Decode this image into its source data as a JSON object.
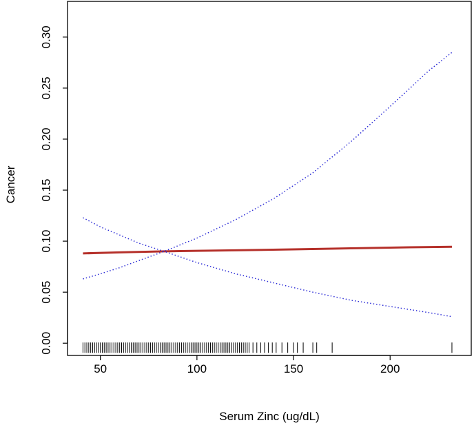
{
  "chart_data": {
    "type": "line",
    "title": "",
    "xlabel": "Serum Zinc (ug/dL)",
    "ylabel": "Cancer",
    "xlim": [
      33,
      242
    ],
    "ylim": [
      -0.012,
      0.335
    ],
    "x_ticks": [
      50,
      100,
      150,
      200
    ],
    "y_ticks": [
      0.0,
      0.05,
      0.1,
      0.15,
      0.2,
      0.25,
      0.3
    ],
    "x_tick_labels": [
      "50",
      "100",
      "150",
      "200"
    ],
    "y_tick_labels": [
      "0.00",
      "0.05",
      "0.10",
      "0.15",
      "0.20",
      "0.25",
      "0.30"
    ],
    "grid": false,
    "legend": "none",
    "series": [
      {
        "role": "fit",
        "style": "solid",
        "color": "#b5302a",
        "x": [
          41,
          60,
          83,
          100,
          120,
          150,
          180,
          210,
          232
        ],
        "y": [
          0.088,
          0.089,
          0.09,
          0.0905,
          0.091,
          0.092,
          0.093,
          0.094,
          0.0945
        ]
      },
      {
        "role": "upper-ci",
        "style": "dotted",
        "color": "#2b2bd6",
        "x": [
          41,
          50,
          60,
          70,
          83,
          100,
          120,
          140,
          160,
          180,
          200,
          220,
          232
        ],
        "y": [
          0.063,
          0.068,
          0.074,
          0.081,
          0.09,
          0.103,
          0.121,
          0.142,
          0.167,
          0.198,
          0.232,
          0.267,
          0.285
        ]
      },
      {
        "role": "lower-ci",
        "style": "dotted",
        "color": "#2b2bd6",
        "x": [
          41,
          50,
          60,
          70,
          83,
          100,
          120,
          140,
          160,
          180,
          200,
          220,
          232
        ],
        "y": [
          0.123,
          0.114,
          0.106,
          0.098,
          0.09,
          0.079,
          0.068,
          0.059,
          0.05,
          0.042,
          0.036,
          0.03,
          0.026
        ]
      }
    ],
    "rug": {
      "y": 0.0,
      "x": [
        41,
        42,
        43,
        44,
        45,
        46,
        47,
        48,
        49,
        50,
        51,
        52,
        53,
        54,
        55,
        56,
        57,
        58,
        59,
        60,
        61,
        62,
        63,
        64,
        65,
        66,
        67,
        68,
        69,
        70,
        71,
        72,
        73,
        74,
        75,
        76,
        77,
        78,
        79,
        80,
        81,
        82,
        83,
        84,
        85,
        86,
        87,
        88,
        89,
        90,
        91,
        92,
        93,
        94,
        95,
        96,
        97,
        98,
        99,
        100,
        101,
        102,
        103,
        104,
        105,
        106,
        107,
        108,
        109,
        110,
        111,
        112,
        113,
        114,
        115,
        116,
        117,
        118,
        119,
        120,
        121,
        122,
        123,
        124,
        125,
        126,
        127,
        129,
        131,
        133,
        135,
        137,
        139,
        141,
        144,
        147,
        150,
        152,
        155,
        160,
        162,
        170,
        232
      ]
    }
  }
}
